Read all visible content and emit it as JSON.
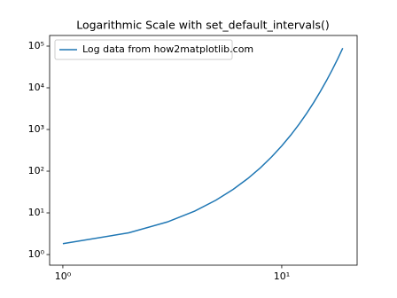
{
  "chart_data": {
    "type": "line",
    "title": "Logarithmic Scale with set_default_intervals()",
    "x": [
      1,
      2,
      3,
      4,
      5,
      6,
      7,
      8,
      9,
      10,
      11,
      12,
      13,
      14,
      15,
      16,
      17,
      18,
      19
    ],
    "series": [
      {
        "name": "Log data from how2matplotlib.com",
        "color": "#1f77b4",
        "values": [
          1.82,
          3.32,
          6.05,
          11.0,
          20.1,
          36.6,
          66.7,
          121.5,
          221.4,
          403.4,
          735.1,
          1339,
          2440,
          4447,
          8103,
          14765,
          26903,
          49021,
          89321
        ]
      }
    ],
    "xscale": "log",
    "yscale": "log",
    "xlim": [
      0.87,
      22.1
    ],
    "ylim": [
      0.556,
      180000
    ],
    "xticks": [
      {
        "value": 1,
        "label": "10⁰"
      },
      {
        "value": 10,
        "label": "10¹"
      }
    ],
    "yticks": [
      {
        "value": 1,
        "label": "10⁰"
      },
      {
        "value": 10,
        "label": "10¹"
      },
      {
        "value": 100,
        "label": "10²"
      },
      {
        "value": 1000,
        "label": "10³"
      },
      {
        "value": 10000,
        "label": "10⁴"
      },
      {
        "value": 100000,
        "label": "10⁵"
      }
    ],
    "legend": "upper left",
    "grid": false
  }
}
